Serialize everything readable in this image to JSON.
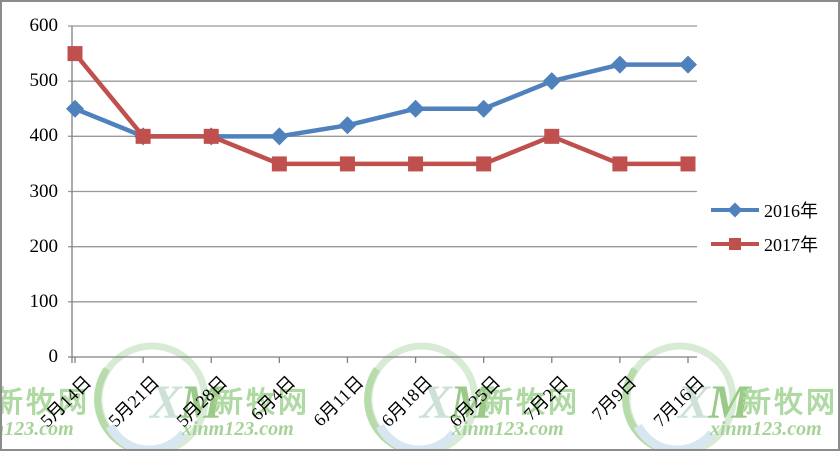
{
  "chart_data": {
    "type": "line",
    "title": "",
    "categories": [
      "5月14日",
      "5月21日",
      "5月28日",
      "6月4日",
      "6月11日",
      "6月18日",
      "6月25日",
      "7月2日",
      "7月9日",
      "7月16日"
    ],
    "series": [
      {
        "name": "2016年",
        "color": "#4F81BD",
        "marker": "diamond",
        "values": [
          450,
          400,
          400,
          400,
          420,
          450,
          450,
          500,
          530,
          530
        ]
      },
      {
        "name": "2017年",
        "color": "#C0504D",
        "marker": "square",
        "values": [
          550,
          400,
          400,
          350,
          350,
          350,
          350,
          400,
          350,
          350
        ]
      }
    ],
    "xlabel": "",
    "ylabel": "",
    "ylim": [
      0,
      600
    ],
    "ytick_step": 100,
    "ytick_labels": [
      "0",
      "100",
      "200",
      "300",
      "400",
      "500",
      "600"
    ],
    "grid": "horizontal",
    "legend_position": "right"
  },
  "watermark": {
    "logo_x": "X",
    "logo_m": "M",
    "brand": "新牧网",
    "url": "xinm123.com"
  },
  "colors": {
    "background": "#FFFFFF",
    "frame_border": "#8C8C8C",
    "axis": "#808080",
    "grid": "#999999",
    "text": "#000000",
    "series_2016": "#4F81BD",
    "series_2017": "#C0504D",
    "watermark_ring_light": "#D5EAD2",
    "watermark_ring_green": "#B2D9A4",
    "watermark_ring_blue": "#D4E4F0"
  }
}
